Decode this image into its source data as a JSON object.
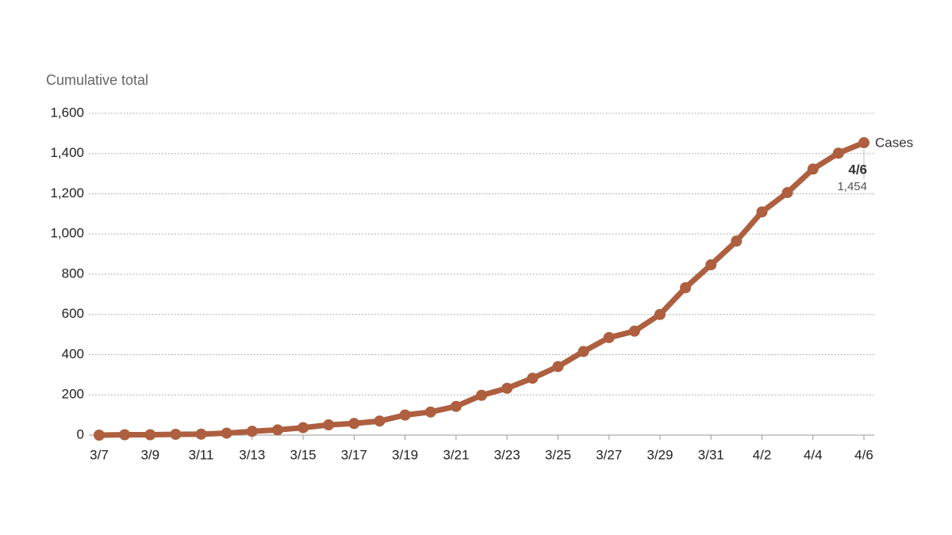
{
  "chart_data": {
    "type": "line",
    "y_label": "Cumulative total",
    "categories": [
      "3/7",
      null,
      "3/9",
      null,
      "3/11",
      null,
      "3/13",
      null,
      "3/15",
      null,
      "3/17",
      null,
      "3/19",
      null,
      "3/21",
      null,
      "3/23",
      null,
      "3/25",
      null,
      "3/27",
      null,
      "3/29",
      null,
      "3/31",
      null,
      "4/2",
      null,
      "4/4",
      null,
      "4/6"
    ],
    "series": [
      {
        "name": "Cases",
        "color": "#ad5f3f",
        "values": [
          0,
          2,
          2,
          4,
          5,
          10,
          19,
          26,
          37,
          51,
          58,
          70,
          100,
          115,
          143,
          198,
          233,
          283,
          341,
          416,
          485,
          517,
          600,
          733,
          847,
          965,
          1110,
          1206,
          1323,
          1402,
          1454
        ],
        "value_labels": [
          null,
          null,
          null,
          null,
          null,
          null,
          null,
          null,
          null,
          null,
          null,
          null,
          null,
          null,
          null,
          null,
          null,
          null,
          null,
          null,
          null,
          null,
          null,
          null,
          null,
          null,
          null,
          null,
          null,
          null,
          "1,454"
        ]
      }
    ],
    "ylim": [
      0,
      1600
    ],
    "yticks": [
      0,
      200,
      400,
      600,
      800,
      {
        "value": 1000,
        "label": "1,000"
      },
      {
        "value": 1200,
        "label": "1,200"
      },
      {
        "value": 1400,
        "label": "1,400"
      },
      {
        "value": 1600,
        "label": "1,600"
      }
    ],
    "grid": true
  }
}
